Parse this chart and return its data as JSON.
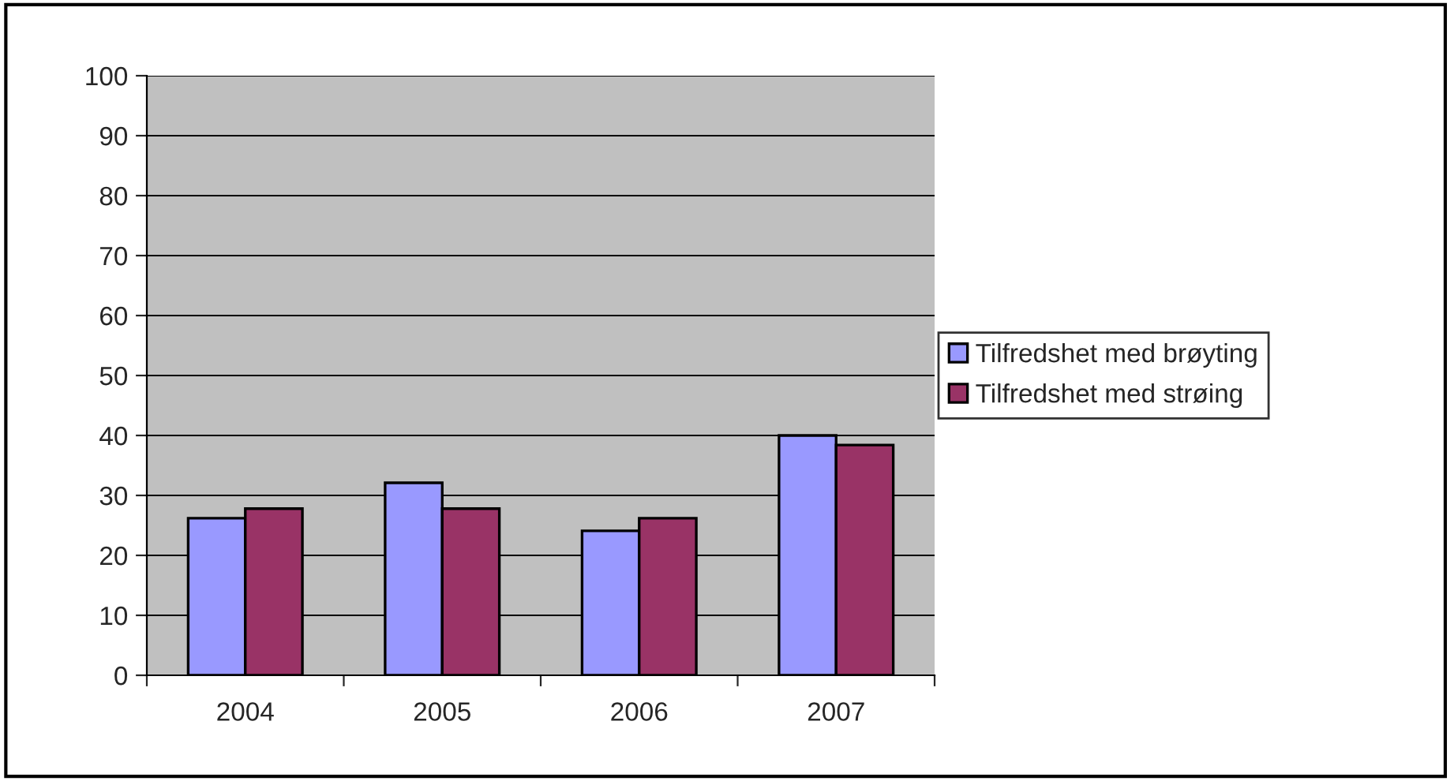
{
  "chart_data": {
    "type": "bar",
    "categories": [
      "2004",
      "2005",
      "2006",
      "2007"
    ],
    "series": [
      {
        "name": "Tilfredshet med brøyting",
        "color": "#9999ff",
        "values": [
          26.2,
          32.1,
          24.1,
          40
        ]
      },
      {
        "name": "Tilfredshet med strøing",
        "color": "#993366",
        "values": [
          27.8,
          27.8,
          26.2,
          38.4
        ]
      }
    ],
    "ylim": [
      0,
      100
    ],
    "yticks": [
      0,
      10,
      20,
      30,
      40,
      50,
      60,
      70,
      80,
      90,
      100
    ],
    "grid": "y",
    "legend": "right"
  }
}
